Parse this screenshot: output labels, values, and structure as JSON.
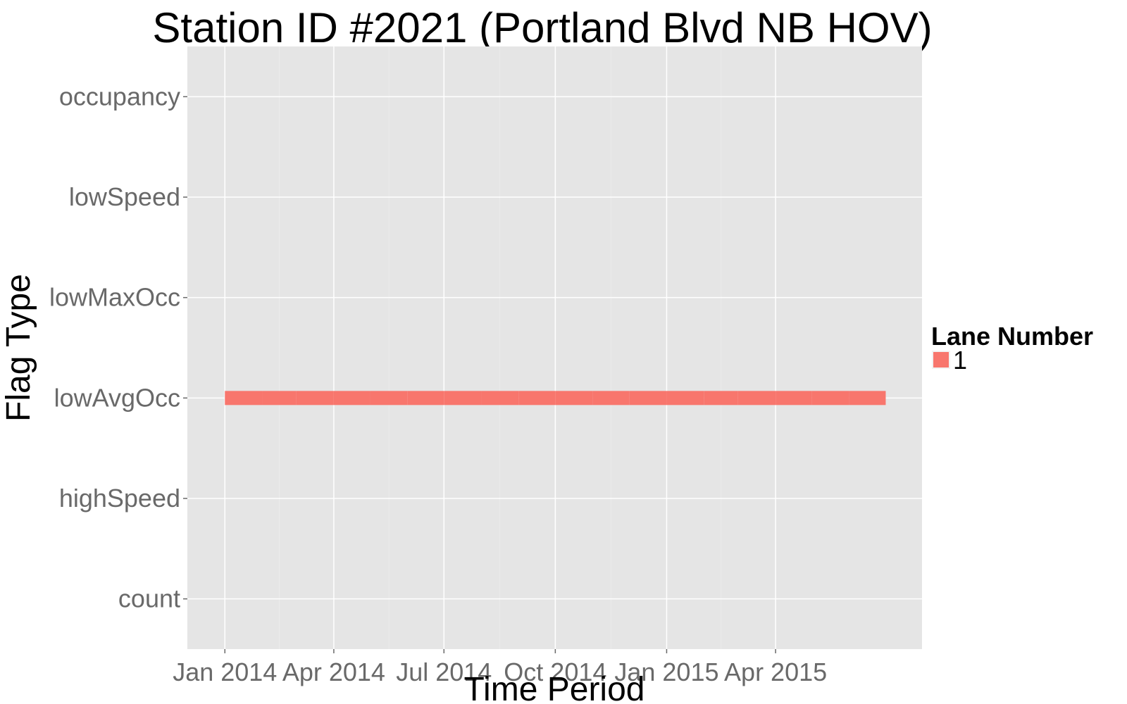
{
  "chart_data": {
    "type": "bar",
    "title": "Station ID #2021 (Portland Blvd NB HOV)",
    "xlabel": "Time Period",
    "ylabel": "Flag Type",
    "x_axis": {
      "scale": "date",
      "range": [
        "2013-12-01",
        "2015-07-31"
      ],
      "ticks": [
        {
          "date": "2014-01-01",
          "label": "Jan 2014"
        },
        {
          "date": "2014-04-01",
          "label": "Apr 2014"
        },
        {
          "date": "2014-07-01",
          "label": "Jul 2014"
        },
        {
          "date": "2014-10-01",
          "label": "Oct 2014"
        },
        {
          "date": "2015-01-01",
          "label": "Jan 2015"
        },
        {
          "date": "2015-04-01",
          "label": "Apr 2015"
        }
      ]
    },
    "categories": [
      "count",
      "highSpeed",
      "lowAvgOcc",
      "lowMaxOcc",
      "lowSpeed",
      "occupancy"
    ],
    "grid": true,
    "legend": {
      "title": "Lane Number",
      "placement": "right",
      "entries": [
        {
          "label": "1",
          "color": "#F8766D"
        }
      ]
    },
    "series": [
      {
        "name": "1",
        "color": "#F8766D",
        "category": "lowAvgOcc",
        "segments": [
          [
            "2014-01-01",
            "2014-02-01"
          ],
          [
            "2014-02-01",
            "2014-03-01"
          ],
          [
            "2014-03-01",
            "2014-04-01"
          ],
          [
            "2014-04-01",
            "2014-05-01"
          ],
          [
            "2014-05-01",
            "2014-06-01"
          ],
          [
            "2014-06-01",
            "2014-07-01"
          ],
          [
            "2014-07-01",
            "2014-08-01"
          ],
          [
            "2014-08-01",
            "2014-09-01"
          ],
          [
            "2014-09-01",
            "2014-10-01"
          ],
          [
            "2014-10-01",
            "2014-11-01"
          ],
          [
            "2014-11-01",
            "2014-12-01"
          ],
          [
            "2014-12-01",
            "2015-01-01"
          ],
          [
            "2015-01-01",
            "2015-02-01"
          ],
          [
            "2015-02-01",
            "2015-03-01"
          ],
          [
            "2015-03-01",
            "2015-04-01"
          ],
          [
            "2015-04-01",
            "2015-05-01"
          ],
          [
            "2015-05-01",
            "2015-06-01"
          ],
          [
            "2015-06-01",
            "2015-07-01"
          ]
        ]
      }
    ],
    "colors": {
      "panel_background": "#E5E5E5",
      "major_grid": "#FFFFFF",
      "minor_grid": "#EBEBEB",
      "tick_label": "#696969",
      "axis_tick": "#696969"
    }
  }
}
